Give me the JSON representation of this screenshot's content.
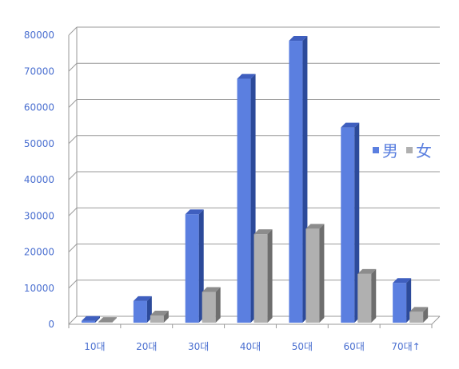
{
  "chart_data": {
    "type": "bar",
    "categories": [
      "10대",
      "20대",
      "30대",
      "40대",
      "50대",
      "60대",
      "70대↑"
    ],
    "series": [
      {
        "name": "男",
        "values": [
          500,
          6000,
          30000,
          67500,
          78000,
          54000,
          11000
        ],
        "color": "#5b7fe0",
        "side_color": "#2c4a9a",
        "top_color": "#3f5fbf"
      },
      {
        "name": "女",
        "values": [
          200,
          2000,
          8500,
          24500,
          26000,
          13500,
          3000
        ],
        "color": "#b0b0b0",
        "side_color": "#6e6e6e",
        "top_color": "#8c8c8c"
      }
    ],
    "yticks": [
      "0",
      "10000",
      "20000",
      "30000",
      "40000",
      "50000",
      "60000",
      "70000",
      "80000"
    ],
    "ylim": [
      0,
      80000
    ],
    "grid": true,
    "legend": "right",
    "title": "",
    "xlabel": "",
    "ylabel": ""
  }
}
